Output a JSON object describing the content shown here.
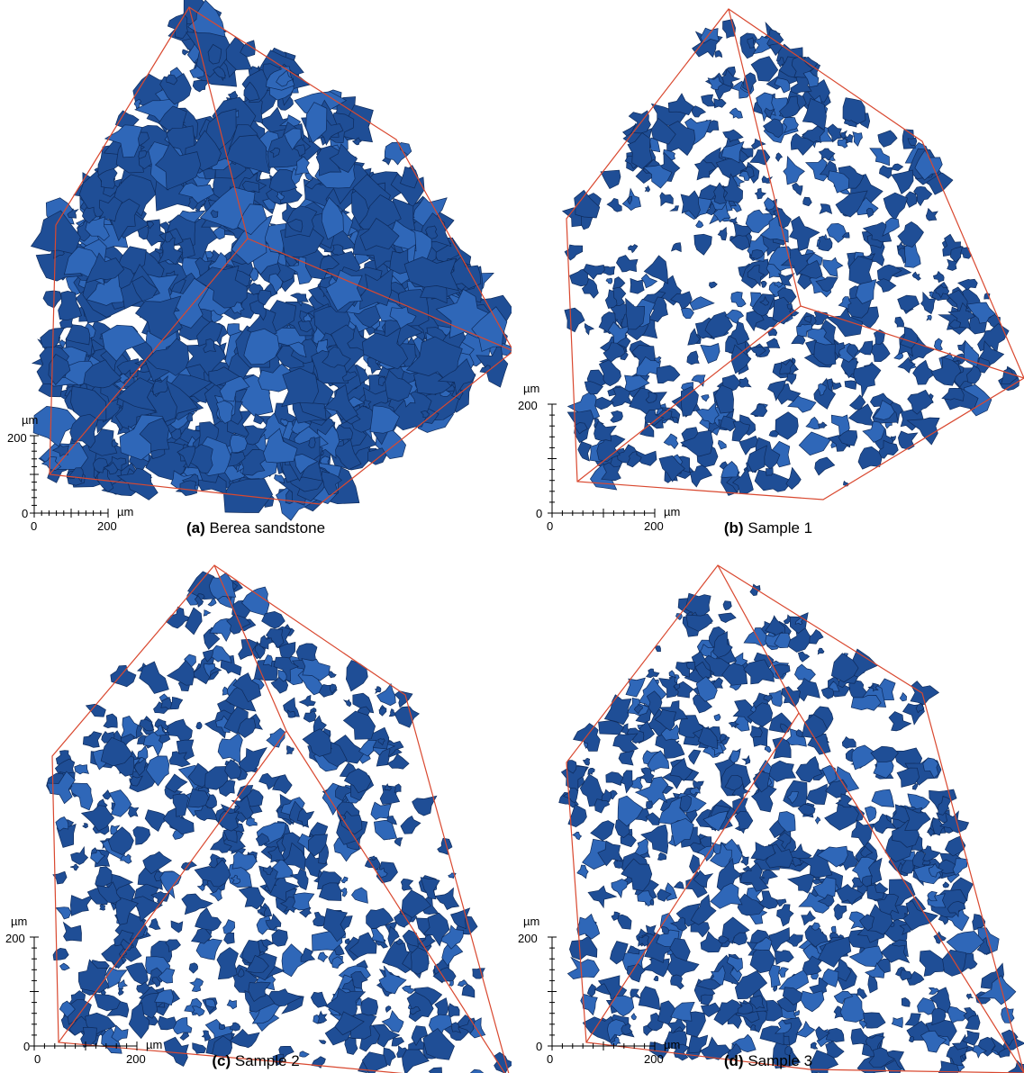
{
  "figure": {
    "panels": [
      {
        "id": "a",
        "caption_tag": "(a)",
        "caption_text": "Berea sandstone",
        "axis_unit_y": "µm",
        "axis_unit_x": "µm",
        "axis_tick_zero": "0",
        "axis_tick_y": "200",
        "axis_tick_x_zero": "0",
        "axis_tick_x": "200",
        "pore_density": 0.95
      },
      {
        "id": "b",
        "caption_tag": "(b)",
        "caption_text": "Sample 1",
        "axis_unit_y": "µm",
        "axis_unit_x": "µm",
        "axis_tick_zero": "0",
        "axis_tick_y": "200",
        "axis_tick_x_zero": "0",
        "axis_tick_x": "200",
        "pore_density": 0.55
      },
      {
        "id": "c",
        "caption_tag": "(c)",
        "caption_text": "Sample 2",
        "axis_unit_y": "µm",
        "axis_unit_x": "µm",
        "axis_tick_zero": "0",
        "axis_tick_y": "200",
        "axis_tick_x_zero": "0",
        "axis_tick_x": "200",
        "pore_density": 0.6
      },
      {
        "id": "d",
        "caption_tag": "(d)",
        "caption_text": "Sample 3",
        "axis_unit_y": "µm",
        "axis_unit_x": "µm",
        "axis_tick_zero": "0",
        "axis_tick_y": "200",
        "axis_tick_x_zero": "0",
        "axis_tick_x": "200",
        "pore_density": 0.65
      }
    ],
    "colors": {
      "pore": "#1f4e96",
      "pore_dark": "#0e2b5c",
      "pore_light": "#2f67b8",
      "cube_edge": "#d9482f",
      "axis": "#000000"
    }
  }
}
